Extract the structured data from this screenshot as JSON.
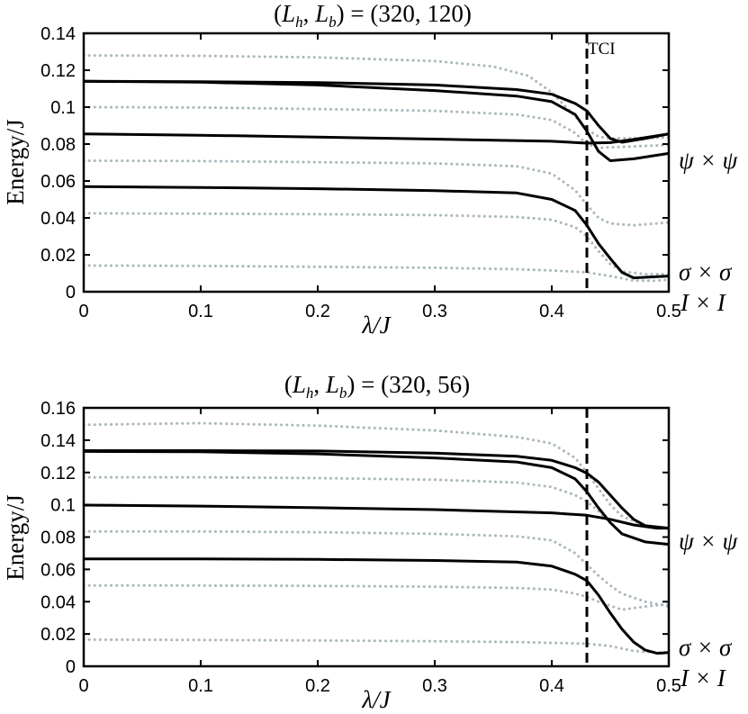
{
  "chart_data": [
    {
      "type": "line",
      "title": "(L_h, L_b) = (320, 120)",
      "title_parts": {
        "open": "(",
        "L": "L",
        "h": "h",
        "comma": ", ",
        "b": "b",
        "rest": ") = (320, 120)"
      },
      "xlabel": "λ/J",
      "ylabel": "Energy/J",
      "xlim": [
        0,
        0.5
      ],
      "ylim": [
        0,
        0.14
      ],
      "x_ticks": [
        "0",
        "0.1",
        "0.2",
        "0.3",
        "0.4",
        "0.5"
      ],
      "y_ticks": [
        "0",
        "0.02",
        "0.04",
        "0.06",
        "0.08",
        "0.1",
        "0.12",
        "0.14"
      ],
      "grid": false,
      "vline": {
        "x": 0.43,
        "label": "TCI",
        "style": "dashed"
      },
      "side_labels": [
        "ψ × ψ",
        "σ × σ",
        "I × I"
      ],
      "series": [
        {
          "style": "solid",
          "color": "#000000",
          "points": [
            [
              0,
              0.114
            ],
            [
              0.1,
              0.1135
            ],
            [
              0.2,
              0.112
            ],
            [
              0.3,
              0.109
            ],
            [
              0.37,
              0.106
            ],
            [
              0.4,
              0.103
            ],
            [
              0.42,
              0.096
            ],
            [
              0.43,
              0.087
            ],
            [
              0.44,
              0.076
            ],
            [
              0.45,
              0.071
            ],
            [
              0.47,
              0.072
            ],
            [
              0.5,
              0.075
            ]
          ]
        },
        {
          "style": "solid",
          "color": "#000000",
          "points": [
            [
              0,
              0.114
            ],
            [
              0.1,
              0.1138
            ],
            [
              0.2,
              0.1133
            ],
            [
              0.3,
              0.112
            ],
            [
              0.37,
              0.1095
            ],
            [
              0.4,
              0.107
            ],
            [
              0.42,
              0.102
            ],
            [
              0.43,
              0.098
            ],
            [
              0.44,
              0.09
            ],
            [
              0.45,
              0.083
            ],
            [
              0.46,
              0.081
            ],
            [
              0.48,
              0.083
            ],
            [
              0.5,
              0.0855
            ]
          ]
        },
        {
          "style": "solid",
          "color": "#000000",
          "points": [
            [
              0,
              0.0855
            ],
            [
              0.1,
              0.0848
            ],
            [
              0.2,
              0.0838
            ],
            [
              0.3,
              0.0827
            ],
            [
              0.4,
              0.0815
            ],
            [
              0.43,
              0.0805
            ],
            [
              0.45,
              0.0808
            ],
            [
              0.47,
              0.0825
            ],
            [
              0.5,
              0.0855
            ]
          ]
        },
        {
          "style": "solid",
          "color": "#000000",
          "points": [
            [
              0,
              0.057
            ],
            [
              0.1,
              0.0565
            ],
            [
              0.2,
              0.0558
            ],
            [
              0.3,
              0.0548
            ],
            [
              0.37,
              0.0535
            ],
            [
              0.4,
              0.05
            ],
            [
              0.42,
              0.044
            ],
            [
              0.43,
              0.036
            ],
            [
              0.44,
              0.026
            ],
            [
              0.45,
              0.018
            ],
            [
              0.46,
              0.0105
            ],
            [
              0.47,
              0.0075
            ],
            [
              0.5,
              0.0085
            ]
          ]
        },
        {
          "style": "dotted",
          "color": "#a9b7bd",
          "points": [
            [
              0,
              0.128
            ],
            [
              0.1,
              0.1278
            ],
            [
              0.2,
              0.127
            ],
            [
              0.3,
              0.125
            ],
            [
              0.35,
              0.122
            ],
            [
              0.38,
              0.117
            ],
            [
              0.4,
              0.108
            ],
            [
              0.42,
              0.095
            ],
            [
              0.43,
              0.088
            ],
            [
              0.44,
              0.084
            ],
            [
              0.45,
              0.083
            ],
            [
              0.5,
              0.0835
            ]
          ]
        },
        {
          "style": "dotted",
          "color": "#a9b7bd",
          "points": [
            [
              0,
              0.1
            ],
            [
              0.1,
              0.0998
            ],
            [
              0.2,
              0.099
            ],
            [
              0.3,
              0.098
            ],
            [
              0.37,
              0.096
            ],
            [
              0.4,
              0.093
            ],
            [
              0.42,
              0.086
            ],
            [
              0.43,
              0.08
            ],
            [
              0.44,
              0.078
            ],
            [
              0.46,
              0.0785
            ],
            [
              0.5,
              0.0795
            ]
          ]
        },
        {
          "style": "dotted",
          "color": "#a9b7bd",
          "points": [
            [
              0,
              0.071
            ],
            [
              0.1,
              0.0708
            ],
            [
              0.2,
              0.0702
            ],
            [
              0.3,
              0.0695
            ],
            [
              0.37,
              0.068
            ],
            [
              0.4,
              0.064
            ],
            [
              0.42,
              0.055
            ],
            [
              0.43,
              0.047
            ],
            [
              0.44,
              0.04
            ],
            [
              0.45,
              0.037
            ],
            [
              0.47,
              0.036
            ],
            [
              0.5,
              0.0375
            ]
          ]
        },
        {
          "style": "dotted",
          "color": "#a9b7bd",
          "points": [
            [
              0,
              0.0425
            ],
            [
              0.1,
              0.0423
            ],
            [
              0.2,
              0.042
            ],
            [
              0.3,
              0.0415
            ],
            [
              0.37,
              0.0405
            ],
            [
              0.4,
              0.039
            ],
            [
              0.42,
              0.035
            ],
            [
              0.43,
              0.03
            ],
            [
              0.44,
              0.022
            ],
            [
              0.45,
              0.015
            ],
            [
              0.46,
              0.011
            ],
            [
              0.48,
              0.0095
            ],
            [
              0.5,
              0.0095
            ]
          ]
        },
        {
          "style": "dotted",
          "color": "#a9b7bd",
          "points": [
            [
              0,
              0.0142
            ],
            [
              0.1,
              0.014
            ],
            [
              0.2,
              0.0135
            ],
            [
              0.3,
              0.013
            ],
            [
              0.37,
              0.0122
            ],
            [
              0.4,
              0.0115
            ],
            [
              0.43,
              0.0105
            ],
            [
              0.45,
              0.0085
            ],
            [
              0.47,
              0.006
            ],
            [
              0.49,
              0.006
            ],
            [
              0.5,
              0.0065
            ]
          ]
        }
      ]
    },
    {
      "type": "line",
      "title": "(L_h, L_b) = (320, 56)",
      "title_parts": {
        "open": "(",
        "L": "L",
        "h": "h",
        "comma": ", ",
        "b": "b",
        "rest": ") = (320, 56)"
      },
      "xlabel": "λ/J",
      "ylabel": "Energy/J",
      "xlim": [
        0,
        0.5
      ],
      "ylim": [
        0,
        0.16
      ],
      "x_ticks": [
        "0",
        "0.1",
        "0.2",
        "0.3",
        "0.4",
        "0.5"
      ],
      "y_ticks": [
        "0",
        "0.02",
        "0.04",
        "0.06",
        "0.08",
        "0.1",
        "0.12",
        "0.14",
        "0.16"
      ],
      "grid": false,
      "vline": {
        "x": 0.43,
        "style": "dashed"
      },
      "side_labels": [
        "ψ × ψ",
        "σ × σ",
        "I × I"
      ],
      "series": [
        {
          "style": "solid",
          "color": "#000000",
          "points": [
            [
              0,
              0.133
            ],
            [
              0.1,
              0.1328
            ],
            [
              0.2,
              0.1315
            ],
            [
              0.3,
              0.129
            ],
            [
              0.37,
              0.1265
            ],
            [
              0.4,
              0.123
            ],
            [
              0.42,
              0.116
            ],
            [
              0.43,
              0.108
            ],
            [
              0.44,
              0.098
            ],
            [
              0.45,
              0.089
            ],
            [
              0.46,
              0.082
            ],
            [
              0.48,
              0.077
            ],
            [
              0.5,
              0.0755
            ]
          ]
        },
        {
          "style": "solid",
          "color": "#000000",
          "points": [
            [
              0,
              0.1335
            ],
            [
              0.1,
              0.1335
            ],
            [
              0.2,
              0.1333
            ],
            [
              0.3,
              0.132
            ],
            [
              0.37,
              0.13
            ],
            [
              0.4,
              0.1275
            ],
            [
              0.42,
              0.123
            ],
            [
              0.43,
              0.1195
            ],
            [
              0.44,
              0.114
            ],
            [
              0.45,
              0.106
            ],
            [
              0.46,
              0.098
            ],
            [
              0.47,
              0.091
            ],
            [
              0.48,
              0.087
            ],
            [
              0.5,
              0.0855
            ]
          ]
        },
        {
          "style": "solid",
          "color": "#000000",
          "points": [
            [
              0,
              0.0998
            ],
            [
              0.1,
              0.0992
            ],
            [
              0.2,
              0.0982
            ],
            [
              0.3,
              0.097
            ],
            [
              0.4,
              0.095
            ],
            [
              0.43,
              0.0935
            ],
            [
              0.45,
              0.091
            ],
            [
              0.47,
              0.0875
            ],
            [
              0.49,
              0.0855
            ],
            [
              0.5,
              0.0855
            ]
          ]
        },
        {
          "style": "solid",
          "color": "#000000",
          "points": [
            [
              0,
              0.0665
            ],
            [
              0.1,
              0.0665
            ],
            [
              0.2,
              0.0662
            ],
            [
              0.3,
              0.0655
            ],
            [
              0.37,
              0.0645
            ],
            [
              0.4,
              0.062
            ],
            [
              0.42,
              0.057
            ],
            [
              0.43,
              0.053
            ],
            [
              0.44,
              0.044
            ],
            [
              0.45,
              0.033
            ],
            [
              0.46,
              0.023
            ],
            [
              0.47,
              0.015
            ],
            [
              0.48,
              0.01
            ],
            [
              0.49,
              0.008
            ],
            [
              0.5,
              0.0085
            ]
          ]
        },
        {
          "style": "dotted",
          "color": "#a9b7bd",
          "points": [
            [
              0,
              0.1495
            ],
            [
              0.1,
              0.1505
            ],
            [
              0.2,
              0.149
            ],
            [
              0.3,
              0.146
            ],
            [
              0.37,
              0.142
            ],
            [
              0.4,
              0.138
            ],
            [
              0.42,
              0.129
            ],
            [
              0.43,
              0.12
            ],
            [
              0.44,
              0.11
            ],
            [
              0.45,
              0.1
            ],
            [
              0.46,
              0.093
            ],
            [
              0.48,
              0.087
            ],
            [
              0.5,
              0.0855
            ]
          ]
        },
        {
          "style": "dotted",
          "color": "#a9b7bd",
          "points": [
            [
              0,
              0.117
            ],
            [
              0.1,
              0.117
            ],
            [
              0.2,
              0.1165
            ],
            [
              0.3,
              0.1155
            ],
            [
              0.37,
              0.1138
            ],
            [
              0.4,
              0.111
            ],
            [
              0.42,
              0.106
            ],
            [
              0.43,
              0.102
            ],
            [
              0.44,
              0.096
            ],
            [
              0.45,
              0.089
            ],
            [
              0.46,
              0.082
            ],
            [
              0.48,
              0.077
            ],
            [
              0.5,
              0.0755
            ]
          ]
        },
        {
          "style": "dotted",
          "color": "#a9b7bd",
          "points": [
            [
              0,
              0.0835
            ],
            [
              0.1,
              0.0835
            ],
            [
              0.2,
              0.083
            ],
            [
              0.3,
              0.082
            ],
            [
              0.37,
              0.0805
            ],
            [
              0.4,
              0.078
            ],
            [
              0.42,
              0.07
            ],
            [
              0.43,
              0.063
            ],
            [
              0.44,
              0.056
            ],
            [
              0.45,
              0.05
            ],
            [
              0.46,
              0.045
            ],
            [
              0.48,
              0.04
            ],
            [
              0.5,
              0.037
            ]
          ]
        },
        {
          "style": "dotted",
          "color": "#a9b7bd",
          "points": [
            [
              0,
              0.05
            ],
            [
              0.1,
              0.05
            ],
            [
              0.2,
              0.0498
            ],
            [
              0.3,
              0.0493
            ],
            [
              0.37,
              0.0485
            ],
            [
              0.4,
              0.0475
            ],
            [
              0.42,
              0.045
            ],
            [
              0.43,
              0.043
            ],
            [
              0.44,
              0.04
            ],
            [
              0.46,
              0.035
            ],
            [
              0.48,
              0.037
            ],
            [
              0.5,
              0.0385
            ]
          ]
        },
        {
          "style": "dotted",
          "color": "#a9b7bd",
          "points": [
            [
              0,
              0.0165
            ],
            [
              0.1,
              0.0163
            ],
            [
              0.2,
              0.016
            ],
            [
              0.3,
              0.0155
            ],
            [
              0.37,
              0.015
            ],
            [
              0.4,
              0.0145
            ],
            [
              0.43,
              0.014
            ],
            [
              0.45,
              0.0125
            ],
            [
              0.47,
              0.0095
            ],
            [
              0.49,
              0.0085
            ],
            [
              0.5,
              0.0085
            ]
          ]
        }
      ]
    }
  ]
}
